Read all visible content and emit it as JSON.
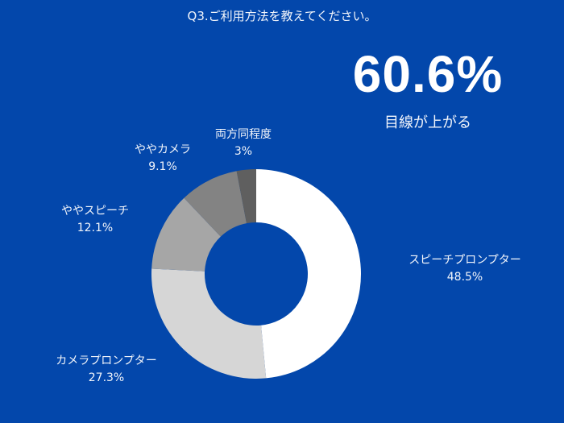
{
  "title": "Q3.ご利用方法を教えてください。",
  "highlight": {
    "value": "60.6%",
    "caption": "目線が上がる"
  },
  "colors": {
    "background": "#0347ab",
    "text": "#ffffff"
  },
  "chart_data": {
    "type": "pie",
    "subtype": "donut",
    "title": "Q3.ご利用方法を教えてください。",
    "categories": [
      "スピーチプロンプター",
      "カメラプロンプター",
      "ややスピーチ",
      "ややカメラ",
      "両方同程度"
    ],
    "values": [
      48.5,
      27.3,
      12.1,
      9.1,
      3.0
    ],
    "value_labels": [
      "48.5%",
      "27.3%",
      "12.1%",
      "9.1%",
      "3%"
    ],
    "colors": [
      "#ffffff",
      "#d6d6d6",
      "#a6a6a6",
      "#838383",
      "#5f5f5f"
    ],
    "start_angle": "12 o'clock, clockwise",
    "legend": "none (direct labels)",
    "annotation": {
      "text": "60.6%",
      "subtext": "目線が上がる"
    }
  },
  "labels": [
    {
      "name": "スピーチプロンプター",
      "pct": "48.5%"
    },
    {
      "name": "カメラプロンプター",
      "pct": "27.3%"
    },
    {
      "name": "ややスピーチ",
      "pct": "12.1%"
    },
    {
      "name": "ややカメラ",
      "pct": "9.1%"
    },
    {
      "name": "両方同程度",
      "pct": "3%"
    }
  ]
}
